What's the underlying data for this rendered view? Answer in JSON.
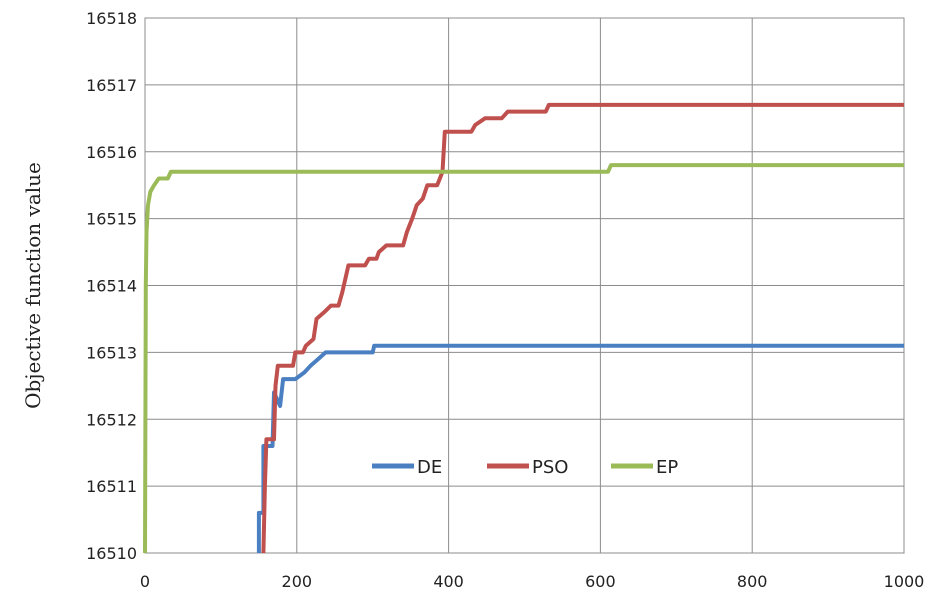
{
  "chart_data": {
    "type": "line",
    "title": "",
    "xlabel": "",
    "ylabel": "Objective function value",
    "xlim": [
      0,
      1000
    ],
    "ylim": [
      16510,
      16518
    ],
    "xticks": [
      "0",
      "200",
      "400",
      "600",
      "800",
      "1000"
    ],
    "yticks": [
      "16510",
      "16511",
      "16512",
      "16513",
      "16514",
      "16515",
      "16516",
      "16517",
      "16518"
    ],
    "grid": true,
    "legend_position": "center-bottom",
    "series": [
      {
        "name": "DE",
        "color": "#4a7fc1",
        "points": [
          [
            150,
            16510
          ],
          [
            150,
            16510.6
          ],
          [
            156,
            16510.6
          ],
          [
            156,
            16511.6
          ],
          [
            168,
            16511.6
          ],
          [
            170,
            16512.4
          ],
          [
            178,
            16512.2
          ],
          [
            182,
            16512.6
          ],
          [
            198,
            16512.6
          ],
          [
            210,
            16512.7
          ],
          [
            218,
            16512.8
          ],
          [
            228,
            16512.9
          ],
          [
            238,
            16513.0
          ],
          [
            300,
            16513.0
          ],
          [
            302,
            16513.1
          ],
          [
            1000,
            16513.1
          ]
        ]
      },
      {
        "name": "PSO",
        "color": "#c0504d",
        "points": [
          [
            156,
            16510
          ],
          [
            158,
            16511.0
          ],
          [
            160,
            16511.7
          ],
          [
            170,
            16511.7
          ],
          [
            172,
            16512.5
          ],
          [
            175,
            16512.8
          ],
          [
            195,
            16512.8
          ],
          [
            198,
            16513.0
          ],
          [
            208,
            16513.0
          ],
          [
            212,
            16513.1
          ],
          [
            222,
            16513.2
          ],
          [
            226,
            16513.5
          ],
          [
            236,
            16513.6
          ],
          [
            245,
            16513.7
          ],
          [
            255,
            16513.7
          ],
          [
            260,
            16513.9
          ],
          [
            268,
            16514.3
          ],
          [
            290,
            16514.3
          ],
          [
            295,
            16514.4
          ],
          [
            305,
            16514.4
          ],
          [
            308,
            16514.5
          ],
          [
            318,
            16514.6
          ],
          [
            340,
            16514.6
          ],
          [
            345,
            16514.8
          ],
          [
            352,
            16515.0
          ],
          [
            358,
            16515.2
          ],
          [
            366,
            16515.3
          ],
          [
            372,
            16515.5
          ],
          [
            385,
            16515.5
          ],
          [
            392,
            16515.7
          ],
          [
            395,
            16516.3
          ],
          [
            430,
            16516.3
          ],
          [
            435,
            16516.4
          ],
          [
            448,
            16516.5
          ],
          [
            470,
            16516.5
          ],
          [
            478,
            16516.6
          ],
          [
            528,
            16516.6
          ],
          [
            532,
            16516.7
          ],
          [
            1000,
            16516.7
          ]
        ]
      },
      {
        "name": "EP",
        "color": "#9bbb59",
        "points": [
          [
            0,
            16510
          ],
          [
            1,
            16514.0
          ],
          [
            2,
            16514.8
          ],
          [
            4,
            16515.2
          ],
          [
            7,
            16515.4
          ],
          [
            12,
            16515.5
          ],
          [
            18,
            16515.6
          ],
          [
            30,
            16515.6
          ],
          [
            34,
            16515.7
          ],
          [
            610,
            16515.7
          ],
          [
            614,
            16515.8
          ],
          [
            1000,
            16515.8
          ]
        ]
      }
    ]
  }
}
